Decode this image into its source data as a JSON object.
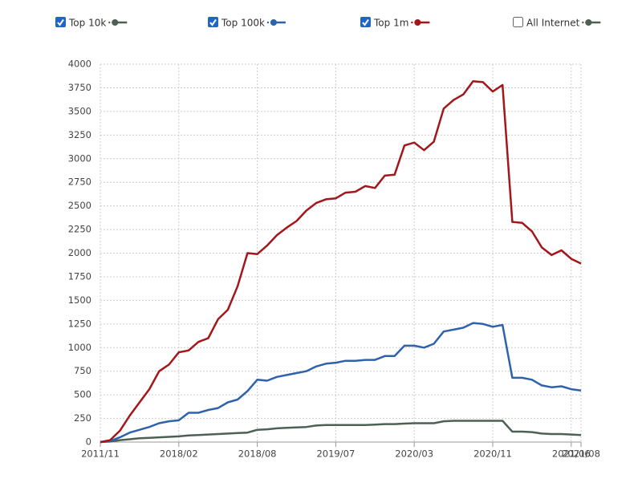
{
  "chart_data": {
    "type": "line",
    "x": [
      "2011/11",
      null,
      null,
      null,
      null,
      null,
      null,
      null,
      "2018/02",
      null,
      null,
      null,
      null,
      null,
      null,
      null,
      "2018/08",
      null,
      null,
      null,
      null,
      null,
      null,
      null,
      "2019/07",
      null,
      null,
      null,
      null,
      null,
      null,
      null,
      "2020/03",
      null,
      null,
      null,
      null,
      null,
      null,
      null,
      "2020/11",
      null,
      null,
      null,
      null,
      null,
      null,
      null,
      "2021/06",
      "2021/08"
    ],
    "series": [
      {
        "name": "Top 10k",
        "color": "#4d6152",
        "checked": true,
        "values": [
          0,
          5,
          20,
          30,
          40,
          45,
          50,
          55,
          60,
          70,
          75,
          80,
          85,
          90,
          95,
          100,
          130,
          135,
          145,
          150,
          155,
          160,
          175,
          180,
          180,
          180,
          180,
          180,
          185,
          190,
          190,
          195,
          200,
          200,
          200,
          220,
          225,
          225,
          225,
          225,
          225,
          225,
          110,
          110,
          105,
          90,
          85,
          85,
          80,
          75
        ]
      },
      {
        "name": "Top 100k",
        "color": "#2e62ad",
        "checked": true,
        "values": [
          0,
          10,
          50,
          100,
          130,
          160,
          200,
          220,
          230,
          310,
          310,
          340,
          360,
          420,
          450,
          540,
          660,
          650,
          690,
          710,
          730,
          750,
          800,
          830,
          840,
          860,
          860,
          870,
          870,
          910,
          910,
          1020,
          1020,
          1000,
          1040,
          1170,
          1190,
          1210,
          1260,
          1250,
          1220,
          1240,
          680,
          680,
          660,
          600,
          580,
          590,
          560,
          545
        ]
      },
      {
        "name": "Top 1m",
        "color": "#a3161a",
        "checked": true,
        "values": [
          0,
          20,
          120,
          280,
          420,
          560,
          750,
          820,
          950,
          970,
          1060,
          1100,
          1300,
          1400,
          1650,
          2000,
          1990,
          2080,
          2190,
          2270,
          2340,
          2450,
          2530,
          2570,
          2580,
          2640,
          2650,
          2710,
          2690,
          2820,
          2830,
          3140,
          3170,
          3090,
          3180,
          3530,
          3620,
          3680,
          3820,
          3810,
          3710,
          3780,
          2330,
          2320,
          2230,
          2060,
          1980,
          2030,
          1940,
          1890
        ]
      }
    ],
    "hidden_series": [
      {
        "name": "All Internet",
        "color": "#4d6152",
        "checked": false
      }
    ],
    "ylim": [
      0,
      4000
    ],
    "yticks": [
      0,
      250,
      500,
      750,
      1000,
      1250,
      1500,
      1750,
      2000,
      2250,
      2500,
      2750,
      3000,
      3250,
      3500,
      3750,
      4000
    ],
    "grid": true
  }
}
